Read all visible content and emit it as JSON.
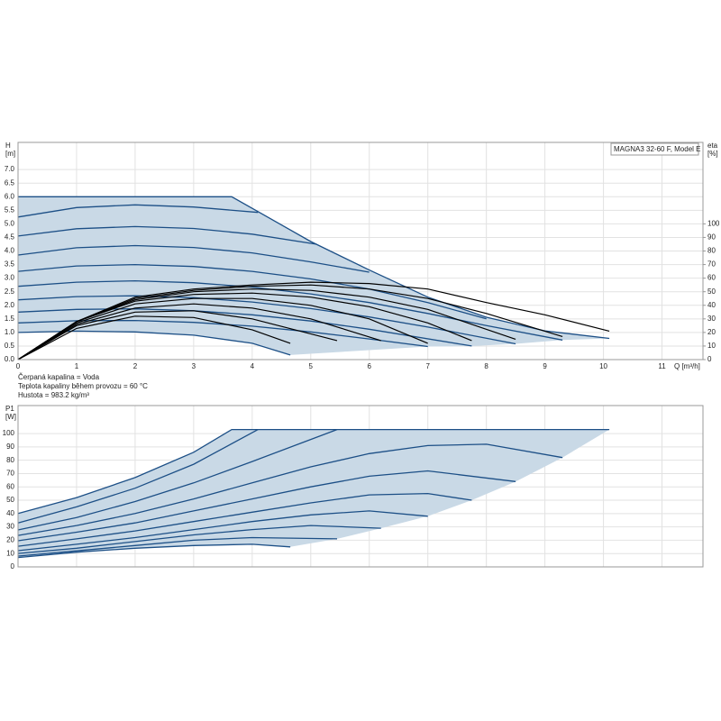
{
  "chart_data": [
    {
      "type": "line",
      "title": "MAGNA3 32-60 F, Model E",
      "ylabel": "H",
      "yunit": "[m]",
      "y2label": "eta",
      "y2unit": "[%]",
      "xlabel": "Q [m³/h]",
      "annotations": [
        "Čerpaná kapalina = Voda",
        "Teplota kapaliny během provozu = 60 °C",
        "Hustota = 983.2 kg/m³"
      ],
      "xlim": [
        0,
        11.7
      ],
      "xticks": [
        0,
        1,
        2,
        3,
        4,
        5,
        6,
        7,
        8,
        9,
        10,
        11
      ],
      "ylim": [
        0,
        8
      ],
      "yticks": [
        {
          "value": 0,
          "label": "0.0"
        },
        0.5,
        {
          "value": 1,
          "label": "1.0"
        },
        1.5,
        {
          "value": 2,
          "label": "2.0"
        },
        2.5,
        {
          "value": 3,
          "label": "3.0"
        },
        3.5,
        {
          "value": 4,
          "label": "4.0"
        },
        4.5,
        {
          "value": 5,
          "label": "5.0"
        },
        5.5,
        {
          "value": 6,
          "label": "6.0"
        },
        6.5,
        {
          "value": 7,
          "label": "7.0"
        }
      ],
      "y2lim": [
        0,
        160
      ],
      "y2ticks": [
        0,
        10,
        20,
        30,
        40,
        50,
        60,
        70,
        80,
        90,
        100
      ],
      "grid": true,
      "fill": "#c9d9e6",
      "series": [
        {
          "color": "#1c4f86",
          "x": [
            0,
            3.65,
            4.1,
            5,
            6,
            7,
            8,
            9,
            10.1
          ],
          "values": [
            6,
            6,
            5.45,
            4.35,
            3.3,
            2.3,
            1.56,
            1.06,
            0.78
          ]
        },
        {
          "color": "#1c4f86",
          "x": [
            0,
            1,
            2,
            3,
            4.1
          ],
          "values": [
            5.25,
            5.6,
            5.7,
            5.62,
            5.42
          ]
        },
        {
          "color": "#1c4f86",
          "x": [
            0,
            1,
            2,
            3,
            4,
            5.1
          ],
          "values": [
            4.55,
            4.82,
            4.9,
            4.83,
            4.62,
            4.25
          ]
        },
        {
          "color": "#1c4f86",
          "x": [
            0,
            1,
            2,
            3,
            4,
            5,
            6
          ],
          "values": [
            3.85,
            4.12,
            4.2,
            4.13,
            3.93,
            3.6,
            3.22
          ]
        },
        {
          "color": "#1c4f86",
          "x": [
            0,
            1,
            2,
            3,
            4,
            5,
            6,
            7,
            8
          ],
          "values": [
            3.25,
            3.45,
            3.5,
            3.43,
            3.25,
            2.97,
            2.6,
            2.1,
            1.5
          ]
        },
        {
          "color": "#1c4f86",
          "x": [
            0,
            1,
            2,
            3,
            4,
            5,
            6,
            7,
            8,
            9.3
          ],
          "values": [
            2.7,
            2.85,
            2.9,
            2.83,
            2.67,
            2.42,
            2.1,
            1.7,
            1.25,
            0.72
          ]
        },
        {
          "color": "#1c4f86",
          "x": [
            0,
            1,
            2,
            3,
            4,
            5,
            6,
            7,
            8.5
          ],
          "values": [
            2.2,
            2.32,
            2.35,
            2.28,
            2.12,
            1.88,
            1.57,
            1.2,
            0.58
          ]
        },
        {
          "color": "#1c4f86",
          "x": [
            0,
            1,
            2,
            3,
            4,
            5,
            6,
            7.75
          ],
          "values": [
            1.75,
            1.85,
            1.87,
            1.8,
            1.65,
            1.42,
            1.12,
            0.5
          ]
        },
        {
          "color": "#1c4f86",
          "x": [
            0,
            1,
            2,
            3,
            4,
            5,
            6,
            7
          ],
          "values": [
            1.35,
            1.43,
            1.44,
            1.37,
            1.23,
            1.02,
            0.76,
            0.48
          ]
        },
        {
          "color": "#1c4f86",
          "x": [
            0,
            1,
            2,
            3,
            4,
            4.65
          ],
          "values": [
            1.0,
            1.05,
            1.02,
            0.9,
            0.6,
            0.17
          ]
        },
        {
          "color": "#000000",
          "axis": "y2",
          "x": [
            0,
            1,
            2,
            3,
            4,
            5,
            6,
            7,
            8,
            9,
            10.1
          ],
          "values": [
            0,
            28,
            46,
            52,
            55,
            57,
            56,
            52,
            42,
            33,
            21
          ]
        },
        {
          "color": "#000000",
          "axis": "y2",
          "x": [
            0,
            1,
            2,
            3,
            4,
            5,
            6,
            7,
            8,
            9.3
          ],
          "values": [
            0,
            28,
            45,
            51,
            54,
            55,
            52,
            45,
            34,
            17
          ]
        },
        {
          "color": "#000000",
          "axis": "y2",
          "x": [
            0,
            1,
            2,
            3,
            4,
            5,
            6,
            7,
            8.5
          ],
          "values": [
            0,
            28,
            44,
            50,
            52,
            51,
            46,
            37,
            15
          ]
        },
        {
          "color": "#000000",
          "axis": "y2",
          "x": [
            0,
            1,
            2,
            3,
            4,
            5,
            6,
            7,
            7.75
          ],
          "values": [
            0,
            28,
            43,
            48,
            49,
            46,
            39,
            27,
            14
          ]
        },
        {
          "color": "#000000",
          "axis": "y2",
          "x": [
            0,
            1,
            2,
            3,
            4,
            5,
            6,
            7
          ],
          "values": [
            0,
            27,
            41,
            45,
            45,
            40,
            30,
            12
          ]
        },
        {
          "color": "#000000",
          "axis": "y2",
          "x": [
            0,
            1,
            2,
            3,
            4,
            5,
            6.2
          ],
          "values": [
            0,
            26,
            38,
            41,
            38,
            30,
            14
          ]
        },
        {
          "color": "#000000",
          "axis": "y2",
          "x": [
            0,
            1,
            2,
            3,
            4,
            5.45
          ],
          "values": [
            0,
            25,
            35,
            36,
            30,
            14
          ]
        },
        {
          "color": "#000000",
          "axis": "y2",
          "x": [
            0,
            1,
            2,
            3,
            4,
            4.65
          ],
          "values": [
            0,
            23,
            32,
            31,
            22,
            12
          ]
        }
      ]
    },
    {
      "type": "line",
      "ylabel": "P1",
      "yunit": "[W]",
      "xlim": [
        0,
        11.7
      ],
      "xticks": [
        0,
        1,
        2,
        3,
        4,
        5,
        6,
        7,
        8,
        9,
        10,
        11
      ],
      "ylim": [
        0,
        121
      ],
      "yticks": [
        0,
        10,
        20,
        30,
        40,
        50,
        60,
        70,
        80,
        90,
        100
      ],
      "grid": true,
      "fill": "#c9d9e6",
      "series": [
        {
          "color": "#1c4f86",
          "x": [
            0,
            1,
            2,
            3,
            3.65,
            10.1
          ],
          "values": [
            40,
            52,
            67,
            86,
            103,
            103
          ]
        },
        {
          "color": "#1c4f86",
          "x": [
            0,
            1,
            2,
            3,
            4.1
          ],
          "values": [
            33,
            45,
            59,
            77,
            103
          ]
        },
        {
          "color": "#1c4f86",
          "x": [
            0,
            1,
            2,
            3,
            4,
            5.45
          ],
          "values": [
            27.7,
            37,
            49,
            63,
            79,
            103
          ]
        },
        {
          "color": "#1c4f86",
          "x": [
            0,
            1,
            2,
            3,
            4,
            5,
            6,
            7,
            8,
            9.3
          ],
          "values": [
            23.6,
            31,
            40,
            51,
            63,
            75,
            85,
            91,
            92,
            82
          ]
        },
        {
          "color": "#1c4f86",
          "x": [
            0,
            1,
            2,
            3,
            4,
            5,
            6,
            7,
            8.5
          ],
          "values": [
            19.6,
            26,
            33,
            42,
            51,
            60,
            68,
            72,
            64
          ]
        },
        {
          "color": "#1c4f86",
          "x": [
            0,
            1,
            2,
            3,
            4,
            5,
            6,
            7,
            7.75
          ],
          "values": [
            15.5,
            21,
            27,
            34,
            41,
            48,
            54,
            55,
            50
          ]
        },
        {
          "color": "#1c4f86",
          "x": [
            0,
            1,
            2,
            3,
            4,
            5,
            6,
            7
          ],
          "values": [
            12.2,
            17,
            22,
            28,
            34,
            39,
            42,
            38
          ]
        },
        {
          "color": "#1c4f86",
          "x": [
            0,
            1,
            2,
            3,
            4,
            5,
            6.2
          ],
          "values": [
            10.1,
            14,
            19,
            24,
            28,
            31,
            29
          ]
        },
        {
          "color": "#1c4f86",
          "x": [
            0,
            1,
            2,
            3,
            4,
            5.45
          ],
          "values": [
            8.1,
            12,
            16,
            20,
            22,
            21
          ]
        },
        {
          "color": "#1c4f86",
          "x": [
            0,
            1,
            2,
            3,
            4,
            4.65
          ],
          "values": [
            7,
            11,
            14,
            16,
            17,
            15
          ]
        }
      ]
    }
  ]
}
